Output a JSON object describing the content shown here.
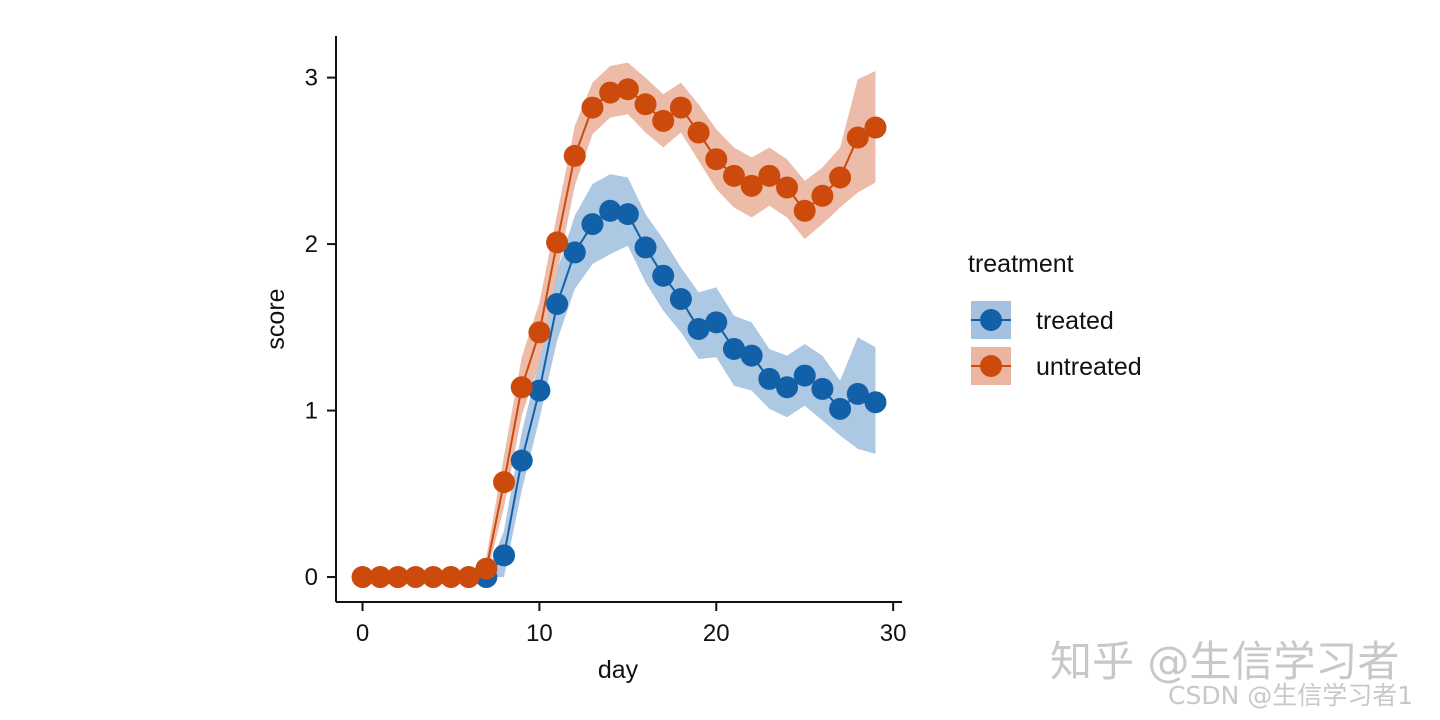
{
  "chart_data": {
    "type": "line",
    "xlabel": "day",
    "ylabel": "score",
    "xlim": [
      -1.5,
      30.5
    ],
    "ylim": [
      -0.15,
      3.25
    ],
    "xticks": [
      0,
      10,
      20,
      30
    ],
    "yticks": [
      0,
      1,
      2,
      3
    ],
    "grid": false,
    "legend": {
      "title": "treatment",
      "position": "right"
    },
    "series": [
      {
        "name": "treated",
        "color": "#1261a8",
        "band_color": "#a4c2e0",
        "x": [
          7,
          8,
          9,
          10,
          11,
          12,
          13,
          14,
          15,
          16,
          17,
          18,
          19,
          20,
          21,
          22,
          23,
          24,
          25,
          26,
          27,
          28,
          29
        ],
        "y": [
          0.0,
          0.13,
          0.7,
          1.12,
          1.64,
          1.95,
          2.12,
          2.2,
          2.18,
          1.98,
          1.81,
          1.67,
          1.49,
          1.53,
          1.37,
          1.33,
          1.19,
          1.14,
          1.21,
          1.13,
          1.01,
          1.1,
          1.05
        ],
        "lower": [
          0.0,
          0.0,
          0.52,
          0.95,
          1.42,
          1.73,
          1.88,
          1.94,
          1.99,
          1.77,
          1.6,
          1.47,
          1.31,
          1.32,
          1.15,
          1.12,
          1.01,
          0.96,
          1.03,
          0.94,
          0.85,
          0.77,
          0.74
        ],
        "upper": [
          0.0,
          0.28,
          0.87,
          1.3,
          1.84,
          2.17,
          2.36,
          2.42,
          2.4,
          2.18,
          2.03,
          1.86,
          1.71,
          1.74,
          1.57,
          1.53,
          1.37,
          1.33,
          1.4,
          1.33,
          1.18,
          1.44,
          1.38
        ]
      },
      {
        "name": "untreated",
        "color": "#cc4a0c",
        "band_color": "#ebb5a0",
        "x": [
          0,
          1,
          2,
          3,
          4,
          5,
          6,
          7,
          8,
          9,
          10,
          11,
          12,
          13,
          14,
          15,
          16,
          17,
          18,
          19,
          20,
          21,
          22,
          23,
          24,
          25,
          26,
          27,
          28,
          29
        ],
        "y": [
          0.0,
          0.0,
          0.0,
          0.0,
          0.0,
          0.0,
          0.0,
          0.05,
          0.57,
          1.14,
          1.47,
          2.01,
          2.53,
          2.82,
          2.91,
          2.93,
          2.84,
          2.74,
          2.82,
          2.67,
          2.51,
          2.41,
          2.35,
          2.41,
          2.34,
          2.2,
          2.29,
          2.4,
          2.64,
          2.7
        ],
        "lower": [
          0.0,
          0.0,
          0.0,
          0.0,
          0.0,
          0.0,
          0.0,
          0.0,
          0.42,
          0.97,
          1.28,
          1.82,
          2.35,
          2.66,
          2.76,
          2.78,
          2.67,
          2.58,
          2.67,
          2.5,
          2.33,
          2.22,
          2.16,
          2.23,
          2.16,
          2.03,
          2.12,
          2.22,
          2.31,
          2.37
        ],
        "upper": [
          0.0,
          0.0,
          0.0,
          0.0,
          0.0,
          0.0,
          0.0,
          0.12,
          0.73,
          1.32,
          1.65,
          2.18,
          2.71,
          2.97,
          3.07,
          3.09,
          3.0,
          2.9,
          2.97,
          2.84,
          2.69,
          2.58,
          2.52,
          2.58,
          2.51,
          2.38,
          2.46,
          2.58,
          2.99,
          3.04
        ]
      }
    ]
  },
  "watermark": {
    "primary": "知乎 @生信学习者",
    "secondary": "CSDN @生信学习者1"
  }
}
